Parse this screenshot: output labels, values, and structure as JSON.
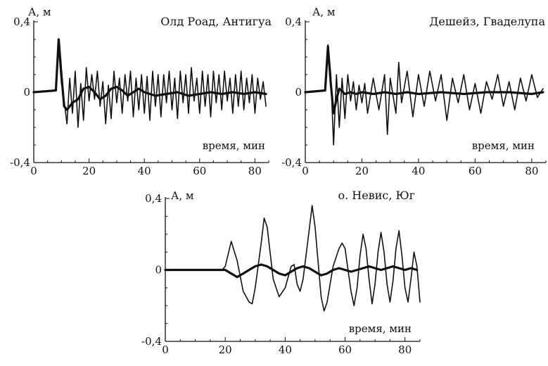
{
  "chart_data": [
    {
      "type": "line",
      "title": "Олд Роад,  Антигуа",
      "ylabel": "А,  м",
      "xlabel": "время,  мин",
      "xlim": [
        0,
        85
      ],
      "ylim": [
        -0.4,
        0.4
      ],
      "x_ticks": [
        0,
        20,
        40,
        60,
        80
      ],
      "x_tick_labels": [
        "0",
        "20",
        "40",
        "60",
        "80"
      ],
      "y_ticks": [
        -0.4,
        0,
        0.4
      ],
      "y_tick_labels": [
        "-0,4",
        "0",
        "0,4"
      ],
      "grid": false,
      "series": [
        {
          "style": "thin-oscillating",
          "x": [
            0,
            8,
            9,
            9.5,
            10,
            11,
            12,
            13,
            14,
            15,
            16,
            17,
            18,
            19,
            20,
            21,
            22,
            23,
            24,
            25,
            26,
            27,
            28,
            29,
            30,
            31,
            32,
            33,
            34,
            35,
            36,
            37,
            38,
            39,
            40,
            41,
            42,
            43,
            44,
            45,
            46,
            47,
            48,
            49,
            50,
            51,
            52,
            53,
            54,
            55,
            56,
            57,
            58,
            59,
            60,
            61,
            62,
            63,
            64,
            65,
            66,
            67,
            68,
            69,
            70,
            71,
            72,
            73,
            74,
            75,
            76,
            77,
            78,
            79,
            80,
            81,
            82,
            83,
            84
          ],
          "y": [
            0,
            0.01,
            0.28,
            0.15,
            0.05,
            -0.05,
            -0.18,
            0.08,
            -0.12,
            0.12,
            -0.2,
            0.05,
            -0.16,
            0.14,
            -0.05,
            0.1,
            -0.04,
            0.12,
            -0.08,
            0.06,
            -0.18,
            0.04,
            -0.15,
            0.12,
            -0.06,
            0.08,
            -0.12,
            0.1,
            -0.05,
            0.12,
            -0.14,
            0.08,
            -0.1,
            0.1,
            -0.12,
            0.09,
            -0.16,
            0.12,
            -0.08,
            0.1,
            -0.14,
            0.1,
            -0.06,
            0.12,
            -0.1,
            0.08,
            -0.15,
            0.12,
            -0.06,
            0.1,
            -0.12,
            0.14,
            -0.05,
            0.08,
            -0.12,
            0.12,
            -0.08,
            0.1,
            -0.14,
            0.12,
            -0.06,
            0.1,
            -0.1,
            0.12,
            -0.05,
            0.08,
            -0.12,
            0.1,
            -0.08,
            0.12,
            -0.1,
            0.08,
            -0.06,
            0.1,
            -0.12,
            0.08,
            -0.04,
            0.06,
            -0.08
          ]
        },
        {
          "style": "thick-smooth",
          "x": [
            0,
            8,
            9,
            10,
            11,
            12,
            14,
            16,
            18,
            20,
            22,
            24,
            26,
            28,
            30,
            32,
            34,
            36,
            38,
            40,
            44,
            48,
            52,
            56,
            60,
            64,
            68,
            72,
            76,
            80,
            84
          ],
          "y": [
            0,
            0.01,
            0.3,
            0.1,
            -0.08,
            -0.1,
            -0.06,
            -0.04,
            0.02,
            0.03,
            0.0,
            -0.04,
            -0.02,
            0.02,
            0.03,
            0.01,
            -0.02,
            0.0,
            0.02,
            0.0,
            -0.02,
            -0.01,
            0.0,
            -0.02,
            -0.01,
            0.0,
            -0.01,
            0.0,
            -0.01,
            0.0,
            -0.01
          ]
        }
      ]
    },
    {
      "type": "line",
      "title": "Дешейз,  Гваделупа",
      "ylabel": "А,  м",
      "xlabel": "время,  мин",
      "xlim": [
        0,
        85
      ],
      "ylim": [
        -0.4,
        0.4
      ],
      "x_ticks": [
        0,
        20,
        40,
        60,
        80
      ],
      "x_tick_labels": [
        "0",
        "20",
        "40",
        "60",
        "80"
      ],
      "y_ticks": [
        -0.4,
        0,
        0.4
      ],
      "y_tick_labels": [
        "-0,4",
        "0",
        "0,4"
      ],
      "grid": false,
      "series": [
        {
          "style": "thin-oscillating",
          "x": [
            0,
            7,
            8,
            9,
            10,
            11,
            12,
            13,
            14,
            15,
            16,
            17,
            18,
            19,
            20,
            21,
            22,
            24,
            26,
            28,
            29,
            30,
            32,
            33,
            34,
            36,
            38,
            40,
            42,
            44,
            46,
            48,
            50,
            52,
            54,
            56,
            58,
            60,
            62,
            64,
            66,
            68,
            70,
            72,
            74,
            76,
            78,
            80,
            82,
            84
          ],
          "y": [
            0,
            0.01,
            0.27,
            0.1,
            -0.3,
            0.1,
            -0.2,
            0.08,
            -0.15,
            0.1,
            -0.05,
            0.06,
            -0.1,
            0.04,
            -0.06,
            0.05,
            -0.12,
            0.08,
            -0.1,
            0.1,
            -0.24,
            0.08,
            -0.12,
            0.17,
            -0.06,
            0.12,
            -0.14,
            0.1,
            -0.08,
            0.12,
            -0.05,
            0.1,
            -0.16,
            0.08,
            -0.06,
            0.1,
            -0.1,
            0.05,
            -0.12,
            0.06,
            -0.04,
            0.1,
            -0.08,
            0.06,
            -0.1,
            0.08,
            -0.05,
            0.1,
            -0.03,
            0.02
          ]
        },
        {
          "style": "thick-smooth",
          "x": [
            0,
            7,
            8,
            9,
            10,
            11,
            12,
            14,
            16,
            18,
            20,
            24,
            28,
            32,
            36,
            40,
            48,
            56,
            64,
            72,
            80,
            84
          ],
          "y": [
            0,
            0.01,
            0.26,
            0.05,
            -0.12,
            -0.04,
            0.02,
            -0.01,
            0.0,
            -0.01,
            0.0,
            -0.01,
            0.0,
            -0.01,
            0.0,
            -0.01,
            0.0,
            -0.01,
            0.0,
            0.0,
            -0.01,
            0.0
          ]
        }
      ]
    },
    {
      "type": "line",
      "title": "о. Невис,  Юг",
      "ylabel": "А,  м",
      "xlabel": "время,  мин",
      "xlim": [
        0,
        85
      ],
      "ylim": [
        -0.4,
        0.4
      ],
      "x_ticks": [
        0,
        20,
        40,
        60,
        80
      ],
      "x_tick_labels": [
        "0",
        "20",
        "40",
        "60",
        "80"
      ],
      "y_ticks": [
        -0.4,
        0,
        0.4
      ],
      "y_tick_labels": [
        "-0,4",
        "0",
        "0,4"
      ],
      "grid": false,
      "series": [
        {
          "style": "thin-oscillating",
          "x": [
            0,
            19,
            20,
            22,
            24,
            26,
            28,
            29,
            30,
            32,
            33,
            34,
            36,
            38,
            40,
            42,
            43,
            44,
            45,
            46,
            48,
            49,
            50,
            52,
            53,
            54,
            56,
            58,
            59,
            60,
            62,
            63,
            64,
            65,
            66,
            67,
            68,
            69,
            70,
            71,
            72,
            73,
            74,
            75,
            76,
            77,
            78,
            79,
            80,
            81,
            82,
            83,
            84,
            85
          ],
          "y": [
            0,
            0,
            0.02,
            0.16,
            0.05,
            -0.12,
            -0.18,
            -0.19,
            -0.1,
            0.15,
            0.29,
            0.24,
            -0.05,
            -0.15,
            -0.1,
            0.02,
            0.03,
            -0.08,
            -0.12,
            -0.05,
            0.22,
            0.36,
            0.24,
            -0.15,
            -0.23,
            -0.18,
            0.02,
            0.12,
            0.15,
            0.12,
            -0.12,
            -0.2,
            -0.1,
            0.08,
            0.2,
            0.12,
            -0.05,
            -0.19,
            -0.08,
            0.1,
            0.21,
            0.1,
            -0.08,
            -0.18,
            -0.06,
            0.12,
            0.22,
            0.08,
            -0.1,
            -0.18,
            -0.05,
            0.1,
            0.02,
            -0.18
          ]
        },
        {
          "style": "thick-smooth",
          "x": [
            0,
            19,
            20,
            22,
            24,
            26,
            28,
            30,
            32,
            34,
            36,
            38,
            40,
            42,
            44,
            46,
            48,
            50,
            52,
            54,
            56,
            58,
            60,
            62,
            64,
            66,
            68,
            70,
            72,
            74,
            76,
            78,
            80,
            82,
            84
          ],
          "y": [
            0,
            0,
            0.0,
            -0.02,
            -0.04,
            -0.02,
            0.0,
            0.02,
            0.03,
            0.02,
            0.0,
            -0.02,
            -0.03,
            -0.01,
            0.01,
            0.02,
            0.01,
            -0.01,
            -0.03,
            -0.02,
            0.0,
            0.01,
            0.0,
            -0.01,
            0.0,
            0.01,
            0.02,
            0.01,
            0.0,
            0.01,
            0.02,
            0.01,
            0.0,
            0.01,
            0.0
          ]
        }
      ]
    }
  ]
}
